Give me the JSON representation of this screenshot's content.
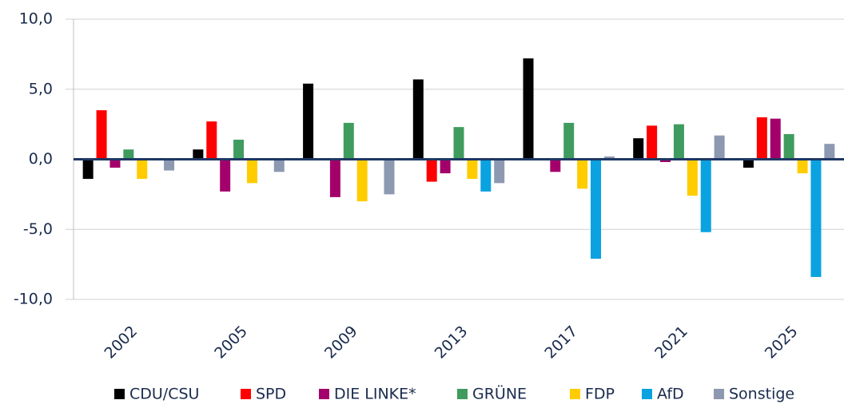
{
  "chart_data": {
    "type": "bar",
    "categories": [
      "2002",
      "2005",
      "2009",
      "2013",
      "2017",
      "2021",
      "2025"
    ],
    "series": [
      {
        "name": "CDU/CSU",
        "color": "#000000",
        "values": [
          -1.4,
          0.7,
          5.4,
          5.7,
          7.2,
          1.5,
          -0.6
        ]
      },
      {
        "name": "SPD",
        "color": "#ff0000",
        "values": [
          3.5,
          2.7,
          0,
          -1.6,
          0,
          2.4,
          3.0
        ]
      },
      {
        "name": "DIE LINKE*",
        "color": "#a4006b",
        "values": [
          -0.6,
          -2.3,
          -2.7,
          -1.0,
          -0.9,
          -0.2,
          2.9
        ]
      },
      {
        "name": "GRÜNE",
        "color": "#3f9c5e",
        "values": [
          0.7,
          1.4,
          2.6,
          2.3,
          2.6,
          2.5,
          1.8
        ]
      },
      {
        "name": "FDP",
        "color": "#ffcc00",
        "values": [
          -1.4,
          -1.7,
          -3.0,
          -1.4,
          -2.1,
          -2.6,
          -1.0
        ]
      },
      {
        "name": "AfD",
        "color": "#0aa2e0",
        "values": [
          0,
          0,
          0,
          -2.3,
          -7.1,
          -5.2,
          -8.4
        ]
      },
      {
        "name": "Sonstige",
        "color": "#8c99b0",
        "values": [
          -0.8,
          -0.9,
          -2.5,
          -1.7,
          0.2,
          1.7,
          1.1
        ]
      }
    ],
    "ylim": [
      -10,
      10
    ],
    "yticks": [
      {
        "value": -10,
        "label": "-10,0"
      },
      {
        "value": -5,
        "label": "-5,0"
      },
      {
        "value": 0,
        "label": "0,0"
      },
      {
        "value": 5,
        "label": "5,0"
      },
      {
        "value": 10,
        "label": "10,0"
      }
    ],
    "grid": true
  }
}
